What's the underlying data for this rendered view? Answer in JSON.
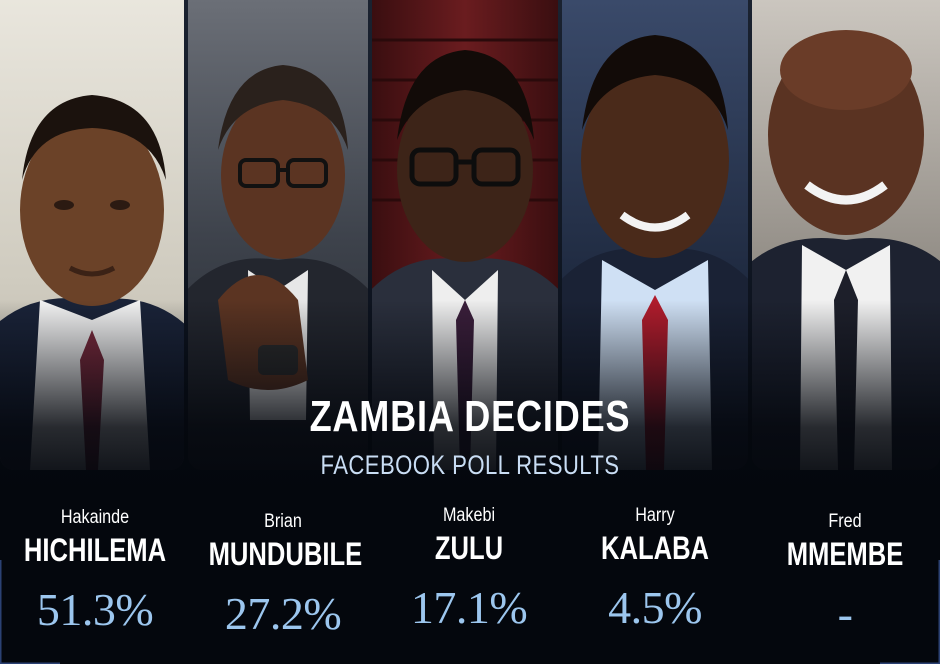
{
  "headline": "ZAMBIA DECIDES",
  "subheadline": "FACEBOOK POLL RESULTS",
  "candidates": [
    {
      "first_name": "Hakainde",
      "last_name": "HICHILEMA",
      "percent": "51.3%",
      "tie_color": "#7a2a3c",
      "backdrop": "#dcd9cf"
    },
    {
      "first_name": "Brian",
      "last_name": "MUNDUBILE",
      "percent": "27.2%",
      "tie_color": "#2a2f3a",
      "backdrop": "#4a4e55"
    },
    {
      "first_name": "Makebi",
      "last_name": "ZULU",
      "percent": "17.1%",
      "tie_color": "#3a1e3a",
      "backdrop": "#5a1a1c"
    },
    {
      "first_name": "Harry",
      "last_name": "KALABA",
      "percent": "4.5%",
      "tie_color": "#b01c2c",
      "backdrop": "#2a3a5a"
    },
    {
      "first_name": "Fred",
      "last_name": "MMEMBE",
      "percent": "-",
      "tie_color": "#1d1f2a",
      "backdrop": "#b5b0aa"
    }
  ],
  "colors": {
    "headline": "#ffffff",
    "subheadline": "#c9ddf4",
    "percent": "#9cc6ee",
    "background": "#04070d"
  }
}
